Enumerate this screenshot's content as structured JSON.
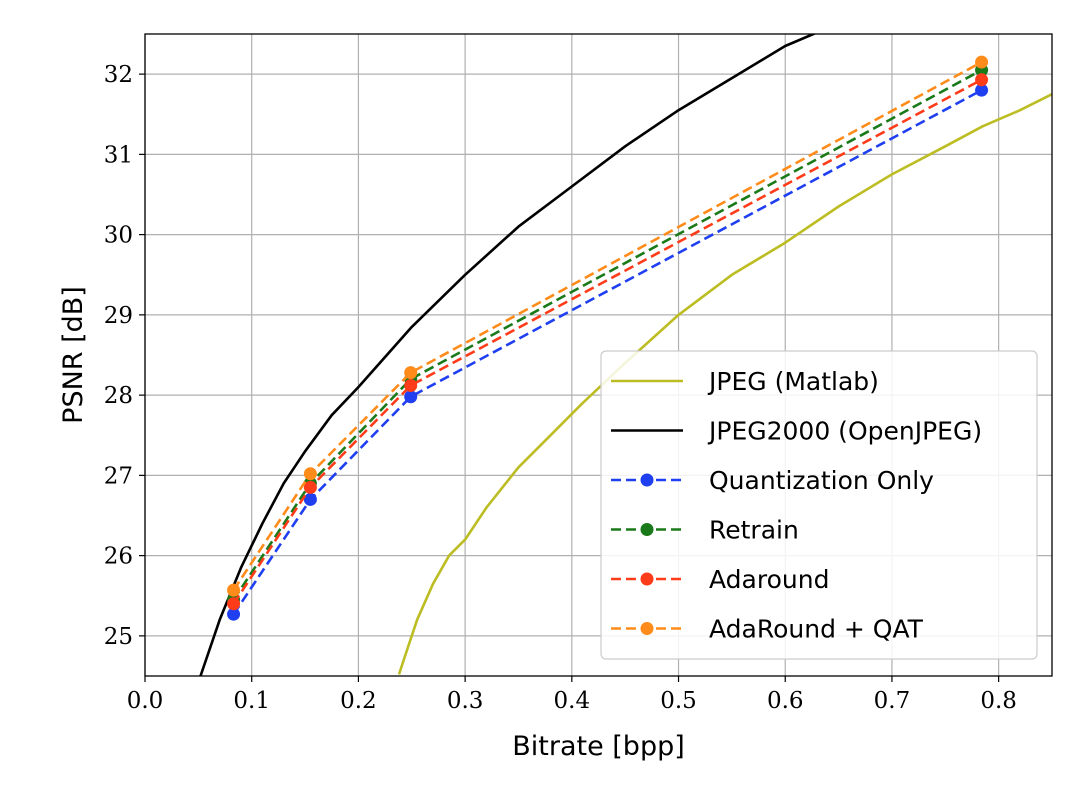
{
  "chart_data": {
    "type": "line",
    "title": "",
    "xlabel": "Bitrate [bpp]",
    "ylabel": "PSNR [dB]",
    "xlim": [
      0.0,
      0.85
    ],
    "ylim": [
      24.5,
      32.5
    ],
    "xticks": [
      0.0,
      0.1,
      0.2,
      0.3,
      0.4,
      0.5,
      0.6,
      0.7,
      0.8
    ],
    "xtick_labels": [
      "0.0",
      "0.1",
      "0.2",
      "0.3",
      "0.4",
      "0.5",
      "0.6",
      "0.7",
      "0.8"
    ],
    "yticks": [
      25,
      26,
      27,
      28,
      29,
      30,
      31,
      32
    ],
    "ytick_labels": [
      "25",
      "26",
      "27",
      "28",
      "29",
      "30",
      "31",
      "32"
    ],
    "grid": true,
    "legend_position": "lower-right",
    "series": [
      {
        "name": "JPEG (Matlab)",
        "color": "#bcbd22",
        "style": "solid",
        "markers": false,
        "x": [
          0.238,
          0.245,
          0.255,
          0.27,
          0.285,
          0.3,
          0.32,
          0.35,
          0.38,
          0.41,
          0.45,
          0.5,
          0.55,
          0.6,
          0.65,
          0.7,
          0.75,
          0.785,
          0.82,
          0.85
        ],
        "y": [
          24.52,
          24.8,
          25.2,
          25.65,
          26.0,
          26.2,
          26.6,
          27.1,
          27.5,
          27.9,
          28.4,
          29.0,
          29.5,
          29.9,
          30.35,
          30.75,
          31.1,
          31.35,
          31.55,
          31.75
        ]
      },
      {
        "name": "JPEG2000 (OpenJPEG)",
        "color": "#000000",
        "style": "solid",
        "markers": false,
        "x": [
          0.052,
          0.07,
          0.09,
          0.11,
          0.13,
          0.15,
          0.175,
          0.2,
          0.25,
          0.3,
          0.35,
          0.4,
          0.45,
          0.5,
          0.55,
          0.6,
          0.63
        ],
        "y": [
          24.5,
          25.2,
          25.85,
          26.4,
          26.9,
          27.3,
          27.75,
          28.1,
          28.85,
          29.5,
          30.1,
          30.6,
          31.1,
          31.55,
          31.95,
          32.35,
          32.52
        ]
      },
      {
        "name": "Quantization Only",
        "color": "#1f3ff0",
        "style": "dashed",
        "markers": true,
        "x": [
          0.083,
          0.155,
          0.249,
          0.784
        ],
        "y": [
          25.27,
          26.7,
          27.98,
          31.8
        ]
      },
      {
        "name": "Retrain",
        "color": "#1a7a1a",
        "style": "dashed",
        "markers": true,
        "x": [
          0.083,
          0.155,
          0.249,
          0.784
        ],
        "y": [
          25.45,
          26.9,
          28.2,
          32.05
        ]
      },
      {
        "name": "Adaround",
        "color": "#ff3c1a",
        "style": "dashed",
        "markers": true,
        "x": [
          0.083,
          0.155,
          0.249,
          0.784
        ],
        "y": [
          25.4,
          26.85,
          28.12,
          31.93
        ]
      },
      {
        "name": "AdaRound + QAT",
        "color": "#ff8c1a",
        "style": "dashed",
        "markers": true,
        "x": [
          0.083,
          0.155,
          0.249,
          0.784
        ],
        "y": [
          25.57,
          27.02,
          28.28,
          32.15
        ]
      }
    ]
  }
}
